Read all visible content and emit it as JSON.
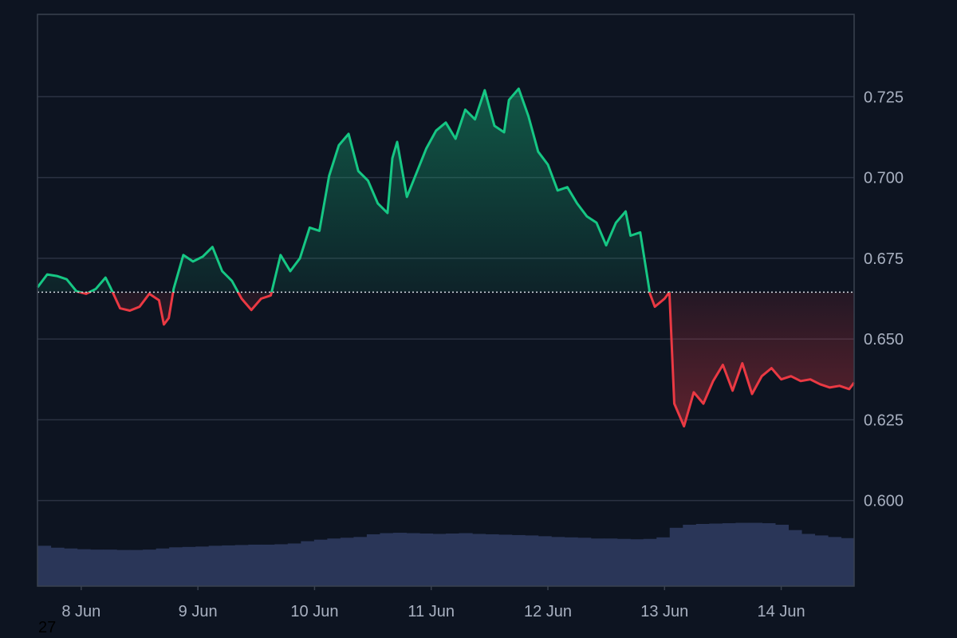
{
  "chart_data": {
    "type": "area",
    "title": "",
    "xlabel": "",
    "ylabel": "",
    "baseline": 0.6645,
    "ylim": [
      0.5735,
      0.7505
    ],
    "xlim": [
      "2024-06-07T15:00",
      "2024-06-14T15:00"
    ],
    "x_ticks": [
      {
        "x": "2024-06-08T00:00",
        "label": "8 Jun"
      },
      {
        "x": "2024-06-09T00:00",
        "label": "9 Jun"
      },
      {
        "x": "2024-06-10T00:00",
        "label": "10 Jun"
      },
      {
        "x": "2024-06-11T00:00",
        "label": "11 Jun"
      },
      {
        "x": "2024-06-12T00:00",
        "label": "12 Jun"
      },
      {
        "x": "2024-06-13T00:00",
        "label": "13 Jun"
      },
      {
        "x": "2024-06-14T00:00",
        "label": "14 Jun"
      }
    ],
    "y_ticks": [
      "0.600",
      "0.625",
      "0.650",
      "0.675",
      "0.700",
      "0.725"
    ],
    "grid": true,
    "colors": {
      "above": "#16c784",
      "below": "#ea3943",
      "volume": "#2a3658",
      "grid": "#2b3242",
      "baseline": "#d7dce4"
    },
    "series": [
      {
        "values": [
          [
            "2024-06-07T15:00",
            0.666
          ],
          [
            "2024-06-07T17:00",
            0.67
          ],
          [
            "2024-06-07T19:00",
            0.6695
          ],
          [
            "2024-06-07T21:00",
            0.6685
          ],
          [
            "2024-06-07T23:00",
            0.6648
          ],
          [
            "2024-06-08T01:00",
            0.664
          ],
          [
            "2024-06-08T03:00",
            0.6655
          ],
          [
            "2024-06-08T05:00",
            0.669
          ],
          [
            "2024-06-08T06:00",
            0.666
          ],
          [
            "2024-06-08T08:00",
            0.6595
          ],
          [
            "2024-06-08T10:00",
            0.6588
          ],
          [
            "2024-06-08T12:00",
            0.66
          ],
          [
            "2024-06-08T14:00",
            0.664
          ],
          [
            "2024-06-08T16:00",
            0.662
          ],
          [
            "2024-06-08T17:00",
            0.6545
          ],
          [
            "2024-06-08T18:00",
            0.6565
          ],
          [
            "2024-06-08T19:00",
            0.6655
          ],
          [
            "2024-06-08T21:00",
            0.676
          ],
          [
            "2024-06-08T23:00",
            0.674
          ],
          [
            "2024-06-09T01:00",
            0.6755
          ],
          [
            "2024-06-09T03:00",
            0.6785
          ],
          [
            "2024-06-09T05:00",
            0.671
          ],
          [
            "2024-06-09T07:00",
            0.668
          ],
          [
            "2024-06-09T09:00",
            0.6625
          ],
          [
            "2024-06-09T11:00",
            0.659
          ],
          [
            "2024-06-09T13:00",
            0.6625
          ],
          [
            "2024-06-09T15:00",
            0.6635
          ],
          [
            "2024-06-09T17:00",
            0.676
          ],
          [
            "2024-06-09T19:00",
            0.671
          ],
          [
            "2024-06-09T21:00",
            0.675
          ],
          [
            "2024-06-09T23:00",
            0.6845
          ],
          [
            "2024-06-10T01:00",
            0.6835
          ],
          [
            "2024-06-10T03:00",
            0.7005
          ],
          [
            "2024-06-10T05:00",
            0.71
          ],
          [
            "2024-06-10T07:00",
            0.7135
          ],
          [
            "2024-06-10T09:00",
            0.702
          ],
          [
            "2024-06-10T11:00",
            0.699
          ],
          [
            "2024-06-10T13:00",
            0.692
          ],
          [
            "2024-06-10T15:00",
            0.689
          ],
          [
            "2024-06-10T16:00",
            0.706
          ],
          [
            "2024-06-10T17:00",
            0.711
          ],
          [
            "2024-06-10T19:00",
            0.694
          ],
          [
            "2024-06-10T21:00",
            0.7015
          ],
          [
            "2024-06-10T23:00",
            0.709
          ],
          [
            "2024-06-11T01:00",
            0.7145
          ],
          [
            "2024-06-11T03:00",
            0.717
          ],
          [
            "2024-06-11T05:00",
            0.712
          ],
          [
            "2024-06-11T07:00",
            0.721
          ],
          [
            "2024-06-11T09:00",
            0.718
          ],
          [
            "2024-06-11T11:00",
            0.727
          ],
          [
            "2024-06-11T13:00",
            0.716
          ],
          [
            "2024-06-11T15:00",
            0.714
          ],
          [
            "2024-06-11T16:00",
            0.724
          ],
          [
            "2024-06-11T18:00",
            0.7275
          ],
          [
            "2024-06-11T20:00",
            0.719
          ],
          [
            "2024-06-11T22:00",
            0.708
          ],
          [
            "2024-06-12T00:00",
            0.704
          ],
          [
            "2024-06-12T02:00",
            0.696
          ],
          [
            "2024-06-12T04:00",
            0.697
          ],
          [
            "2024-06-12T06:00",
            0.692
          ],
          [
            "2024-06-12T08:00",
            0.688
          ],
          [
            "2024-06-12T10:00",
            0.686
          ],
          [
            "2024-06-12T12:00",
            0.679
          ],
          [
            "2024-06-12T14:00",
            0.686
          ],
          [
            "2024-06-12T16:00",
            0.6895
          ],
          [
            "2024-06-12T17:00",
            0.682
          ],
          [
            "2024-06-12T19:00",
            0.683
          ],
          [
            "2024-06-12T21:00",
            0.664
          ],
          [
            "2024-06-12T22:00",
            0.66
          ],
          [
            "2024-06-13T00:00",
            0.6625
          ],
          [
            "2024-06-13T01:00",
            0.6645
          ],
          [
            "2024-06-13T02:00",
            0.63
          ],
          [
            "2024-06-13T04:00",
            0.623
          ],
          [
            "2024-06-13T06:00",
            0.6335
          ],
          [
            "2024-06-13T08:00",
            0.63
          ],
          [
            "2024-06-13T10:00",
            0.637
          ],
          [
            "2024-06-13T12:00",
            0.642
          ],
          [
            "2024-06-13T14:00",
            0.634
          ],
          [
            "2024-06-13T16:00",
            0.6425
          ],
          [
            "2024-06-13T18:00",
            0.633
          ],
          [
            "2024-06-13T20:00",
            0.6385
          ],
          [
            "2024-06-13T22:00",
            0.641
          ],
          [
            "2024-06-14T00:00",
            0.6375
          ],
          [
            "2024-06-14T02:00",
            0.6385
          ],
          [
            "2024-06-14T04:00",
            0.637
          ],
          [
            "2024-06-14T06:00",
            0.6375
          ],
          [
            "2024-06-14T08:00",
            0.636
          ],
          [
            "2024-06-14T10:00",
            0.635
          ],
          [
            "2024-06-14T12:00",
            0.6355
          ],
          [
            "2024-06-14T14:00",
            0.6345
          ],
          [
            "2024-06-14T15:00",
            0.6365
          ]
        ]
      }
    ],
    "volume_level": [
      0.43,
      0.38,
      0.36,
      0.34,
      0.33,
      0.33,
      0.32,
      0.32,
      0.33,
      0.36,
      0.39,
      0.4,
      0.41,
      0.43,
      0.44,
      0.45,
      0.46,
      0.46,
      0.47,
      0.49,
      0.55,
      0.59,
      0.62,
      0.64,
      0.66,
      0.73,
      0.76,
      0.77,
      0.76,
      0.75,
      0.74,
      0.75,
      0.76,
      0.74,
      0.73,
      0.72,
      0.71,
      0.7,
      0.68,
      0.66,
      0.65,
      0.64,
      0.62,
      0.62,
      0.61,
      0.6,
      0.61,
      0.65,
      0.9,
      0.98,
      1.0,
      1.01,
      1.02,
      1.03,
      1.03,
      1.02,
      0.98,
      0.84,
      0.74,
      0.7,
      0.66,
      0.63
    ]
  },
  "footer_text": "27"
}
